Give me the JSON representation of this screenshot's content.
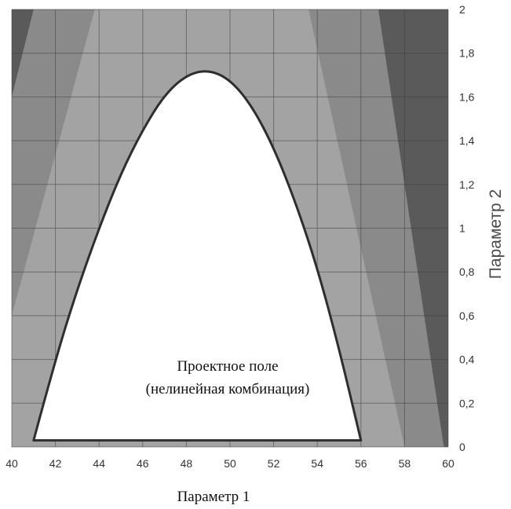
{
  "chart_data": {
    "type": "area",
    "xlabel": "Параметр 1",
    "ylabel": "Параметр 2",
    "xlim": [
      40,
      60
    ],
    "ylim": [
      0,
      2
    ],
    "xticks": [
      "40",
      "42",
      "44",
      "46",
      "48",
      "50",
      "52",
      "54",
      "56",
      "58",
      "60"
    ],
    "yticks": [
      "0",
      "0,2",
      "0,4",
      "0,6",
      "0,8",
      "1",
      "1,2",
      "1,4",
      "1,6",
      "1,8",
      "2"
    ],
    "grid": true,
    "annotation": [
      "Проектное поле",
      "(нелинейная комбинация)"
    ],
    "regions": {
      "feasible_boundary": [
        {
          "x": 41.0,
          "y": 0.03
        },
        {
          "x": 42.0,
          "y": 0.4
        },
        {
          "x": 43.0,
          "y": 0.72
        },
        {
          "x": 44.0,
          "y": 1.0
        },
        {
          "x": 45.0,
          "y": 1.25
        },
        {
          "x": 46.0,
          "y": 1.45
        },
        {
          "x": 47.0,
          "y": 1.61
        },
        {
          "x": 48.0,
          "y": 1.7
        },
        {
          "x": 49.0,
          "y": 1.725
        },
        {
          "x": 50.0,
          "y": 1.68
        },
        {
          "x": 51.0,
          "y": 1.56
        },
        {
          "x": 52.0,
          "y": 1.37
        },
        {
          "x": 53.0,
          "y": 1.12
        },
        {
          "x": 54.0,
          "y": 0.82
        },
        {
          "x": 55.0,
          "y": 0.45
        },
        {
          "x": 56.0,
          "y": 0.03
        }
      ],
      "mid_band_left": [
        {
          "x": 40.0,
          "y": 0.6
        },
        {
          "x": 43.8,
          "y": 2.0
        }
      ],
      "mid_band_right": [
        {
          "x": 53.6,
          "y": 2.0
        },
        {
          "x": 58.0,
          "y": 0.0
        }
      ],
      "outer_band_left": [
        {
          "x": 40.0,
          "y": 1.6
        },
        {
          "x": 41.0,
          "y": 2.0
        }
      ],
      "outer_band_right": [
        {
          "x": 56.8,
          "y": 2.0
        },
        {
          "x": 59.8,
          "y": 0.0
        }
      ]
    },
    "colors": {
      "outer": "#5a5a5a",
      "middle": "#8a8a8a",
      "inner": "#a3a3a3",
      "feasible": "#ffffff",
      "boundary": "#2e2e2e",
      "grid": "#3f3f3f"
    }
  }
}
